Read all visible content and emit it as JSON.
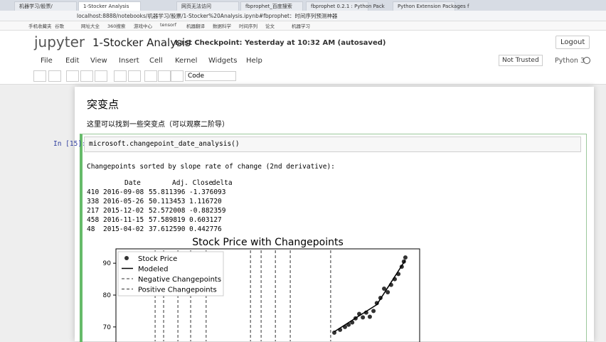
{
  "browser": {
    "tabs": [
      "机器学习/股票/",
      "1-Stocker Analysis",
      "网页无法访问",
      "fbprophet_百度搜索",
      "fbprophet 0.2.1 : Python Pack",
      "Python Extension Packages f"
    ],
    "address": "localhost:8888/notebooks/机器学习/股票/1-Stocker%20Analysis.ipynb#fbprophet：时间序列预测神器",
    "bookmarks": [
      "手机收藏夹",
      "谷歌",
      "网址大全",
      "360搜索",
      "游戏中心",
      "tensorf",
      "机器翻译",
      "数据科学",
      "时间序列",
      "论文",
      "机器学习"
    ]
  },
  "header": {
    "logo": "jupyter",
    "notebook_name": "1-Stocker Analysis",
    "checkpoint": "Last Checkpoint: Yesterday at 10:32 AM (autosaved)",
    "logout": "Logout"
  },
  "menu": {
    "items": [
      "File",
      "Edit",
      "View",
      "Insert",
      "Cell",
      "Kernel",
      "Widgets",
      "Help"
    ],
    "trust": "Not Trusted",
    "kernel": "Python 3"
  },
  "toolbar": {
    "cell_type": "Code"
  },
  "markdown_cell": {
    "heading": "突变点",
    "text": "这里可以找到一些突变点（可以观察二阶导）"
  },
  "code_cell": {
    "prompt": "In [15]:",
    "code": "microsoft.changepoint_date_analysis()"
  },
  "output": {
    "text": "Changepoints sorted by slope rate of change (2nd derivative):",
    "table": {
      "columns": [
        "Date",
        "Adj. Close",
        "delta"
      ],
      "rows": [
        [
          "410",
          "2016-09-08",
          "55.811396",
          "-1.376093"
        ],
        [
          "338",
          "2016-05-26",
          "50.113453",
          "1.116720"
        ],
        [
          "217",
          "2015-12-02",
          "52.572008",
          "-0.882359"
        ],
        [
          "458",
          "2016-11-15",
          "57.589819",
          "0.603127"
        ],
        [
          "48",
          "2015-04-02",
          "37.612590",
          "0.442776"
        ]
      ]
    },
    "chart_data": {
      "type": "scatter",
      "title": "Stock Price with Changepoints",
      "xlim": [
        0,
        100
      ],
      "ylim": [
        65.5,
        94.5
      ],
      "yticks": [
        70,
        80,
        90
      ],
      "legend": "upper left",
      "series": [
        {
          "name": "Stock Price",
          "color": "#333333",
          "x": [
            71.9,
            73.8,
            75.4,
            76.6,
            77.8,
            78.9,
            80.1,
            81.3,
            82.4,
            83.6,
            84.8,
            85.9,
            87.1,
            88.3,
            89.5,
            90.6,
            91.8,
            93.0,
            94.1,
            94.8,
            95.3
          ],
          "values": [
            68.2,
            69.1,
            70.0,
            70.7,
            71.4,
            72.7,
            74.1,
            73.0,
            74.5,
            73.2,
            75.0,
            77.5,
            79.1,
            82.0,
            80.9,
            83.2,
            85.0,
            86.6,
            88.9,
            90.5,
            91.8
          ]
        },
        {
          "name": "Modeled",
          "color": "#000000",
          "x": [
            71.9,
            80.1,
            85.9,
            90.6,
            95.3
          ],
          "values": [
            68.5,
            73.5,
            77.0,
            84.0,
            91.0
          ]
        },
        {
          "name": "Negative Changepoints",
          "color": "#333333",
          "x": [
            12.9,
            15.7,
            20.4,
            24.6,
            29.7
          ]
        },
        {
          "name": "Positive Changepoints",
          "color": "#333333",
          "x": [
            44.3,
            47.8,
            52.5,
            57.4,
            70.7
          ]
        }
      ]
    }
  }
}
